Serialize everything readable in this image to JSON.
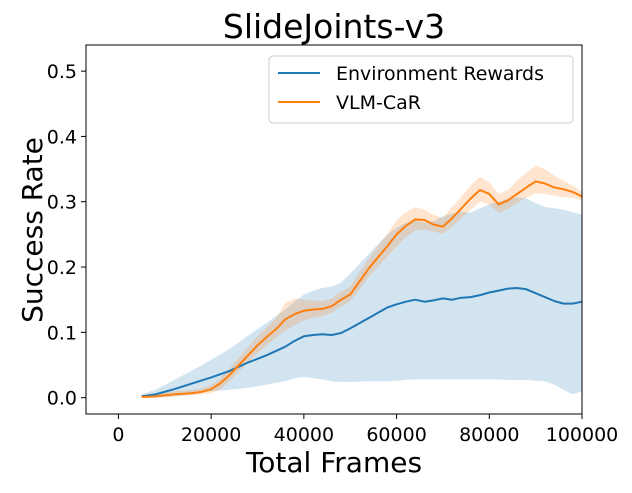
{
  "chart_data": {
    "type": "line",
    "title": "SlideJoints-v3",
    "xlabel": "Total Frames",
    "ylabel": "Success Rate",
    "xlim": [
      -7000,
      100000
    ],
    "ylim": [
      -0.025,
      0.54
    ],
    "xticks": [
      0,
      20000,
      40000,
      60000,
      80000,
      100000
    ],
    "xtick_labels": [
      "0",
      "20000",
      "40000",
      "60000",
      "80000",
      "100000"
    ],
    "yticks": [
      0.0,
      0.1,
      0.2,
      0.3,
      0.4,
      0.5
    ],
    "ytick_labels": [
      "0.0",
      "0.1",
      "0.2",
      "0.3",
      "0.4",
      "0.5"
    ],
    "grid": false,
    "legend_position": "top-right",
    "series": [
      {
        "name": "Environment Rewards",
        "color": "#1f77b4",
        "band_color": "#1f77b4",
        "x": [
          5000,
          8000,
          12000,
          16000,
          20000,
          24000,
          28000,
          32000,
          36000,
          38000,
          40000,
          42000,
          44000,
          46000,
          48000,
          50000,
          54000,
          58000,
          60000,
          62000,
          64000,
          66000,
          68000,
          70000,
          72000,
          74000,
          76000,
          78000,
          80000,
          82000,
          84000,
          86000,
          88000,
          90000,
          92000,
          94000,
          96000,
          98000,
          100000
        ],
        "values": [
          0.002,
          0.005,
          0.013,
          0.022,
          0.031,
          0.041,
          0.054,
          0.065,
          0.078,
          0.087,
          0.094,
          0.096,
          0.097,
          0.096,
          0.099,
          0.106,
          0.122,
          0.138,
          0.143,
          0.147,
          0.15,
          0.147,
          0.149,
          0.152,
          0.15,
          0.153,
          0.154,
          0.157,
          0.161,
          0.164,
          0.167,
          0.168,
          0.166,
          0.16,
          0.154,
          0.148,
          0.144,
          0.144,
          0.147
        ],
        "lower": [
          0.0,
          0.0,
          0.002,
          0.005,
          0.01,
          0.012,
          0.015,
          0.02,
          0.025,
          0.03,
          0.032,
          0.03,
          0.028,
          0.025,
          0.024,
          0.024,
          0.025,
          0.025,
          0.026,
          0.027,
          0.028,
          0.028,
          0.028,
          0.028,
          0.028,
          0.028,
          0.028,
          0.028,
          0.028,
          0.028,
          0.027,
          0.027,
          0.027,
          0.026,
          0.025,
          0.02,
          0.012,
          0.005,
          0.01
        ],
        "upper": [
          0.005,
          0.012,
          0.027,
          0.042,
          0.058,
          0.075,
          0.095,
          0.115,
          0.135,
          0.147,
          0.158,
          0.164,
          0.168,
          0.17,
          0.176,
          0.19,
          0.22,
          0.25,
          0.26,
          0.268,
          0.272,
          0.268,
          0.27,
          0.278,
          0.282,
          0.285,
          0.283,
          0.29,
          0.296,
          0.3,
          0.305,
          0.307,
          0.305,
          0.298,
          0.292,
          0.29,
          0.288,
          0.284,
          0.28
        ]
      },
      {
        "name": "VLM-CaR",
        "color": "#ff7f0e",
        "band_color": "#ff7f0e",
        "x": [
          5000,
          8000,
          12000,
          16000,
          18000,
          20000,
          22000,
          24000,
          26000,
          28000,
          30000,
          32000,
          34000,
          36000,
          38000,
          40000,
          42000,
          44000,
          46000,
          48000,
          50000,
          52000,
          54000,
          56000,
          58000,
          60000,
          62000,
          64000,
          66000,
          68000,
          70000,
          72000,
          74000,
          76000,
          78000,
          80000,
          82000,
          84000,
          86000,
          88000,
          90000,
          92000,
          94000,
          96000,
          98000,
          100000
        ],
        "values": [
          0.001,
          0.002,
          0.005,
          0.007,
          0.009,
          0.013,
          0.022,
          0.035,
          0.05,
          0.065,
          0.08,
          0.093,
          0.105,
          0.12,
          0.128,
          0.133,
          0.135,
          0.136,
          0.14,
          0.15,
          0.158,
          0.178,
          0.198,
          0.215,
          0.232,
          0.25,
          0.263,
          0.273,
          0.272,
          0.265,
          0.262,
          0.275,
          0.29,
          0.305,
          0.318,
          0.312,
          0.296,
          0.302,
          0.312,
          0.322,
          0.331,
          0.328,
          0.322,
          0.319,
          0.315,
          0.308
        ],
        "lower": [
          0.0,
          0.0,
          0.002,
          0.004,
          0.005,
          0.007,
          0.013,
          0.025,
          0.04,
          0.055,
          0.068,
          0.08,
          0.092,
          0.103,
          0.111,
          0.118,
          0.122,
          0.125,
          0.13,
          0.14,
          0.148,
          0.166,
          0.185,
          0.2,
          0.216,
          0.232,
          0.246,
          0.256,
          0.258,
          0.254,
          0.251,
          0.262,
          0.275,
          0.288,
          0.3,
          0.296,
          0.283,
          0.289,
          0.298,
          0.306,
          0.313,
          0.312,
          0.309,
          0.307,
          0.306,
          0.302
        ],
        "upper": [
          0.003,
          0.006,
          0.01,
          0.012,
          0.014,
          0.02,
          0.03,
          0.045,
          0.062,
          0.078,
          0.094,
          0.108,
          0.122,
          0.145,
          0.152,
          0.15,
          0.149,
          0.148,
          0.152,
          0.162,
          0.17,
          0.192,
          0.213,
          0.232,
          0.25,
          0.272,
          0.284,
          0.292,
          0.288,
          0.28,
          0.275,
          0.292,
          0.308,
          0.325,
          0.338,
          0.33,
          0.312,
          0.318,
          0.332,
          0.345,
          0.355,
          0.35,
          0.34,
          0.332,
          0.325,
          0.315
        ]
      }
    ]
  }
}
